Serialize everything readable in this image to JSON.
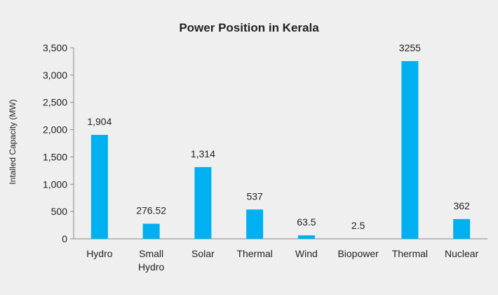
{
  "chart_data": {
    "type": "bar",
    "title": "Power Position in Kerala",
    "xlabel": "",
    "ylabel": "Intalled Capacity (MW)",
    "categories": [
      [
        "Hydro"
      ],
      [
        "Small",
        "Hydro"
      ],
      [
        "Solar"
      ],
      [
        "Thermal"
      ],
      [
        "Wind"
      ],
      [
        "Biopower"
      ],
      [
        "Thermal"
      ],
      [
        "Nuclear"
      ]
    ],
    "values": [
      1904,
      276.52,
      1314,
      537,
      63.5,
      2.5,
      3255,
      362
    ],
    "data_labels": [
      "1,904",
      "276.52",
      "1,314",
      "537",
      "63.5",
      "2.5",
      "3255",
      "362"
    ],
    "ylim": [
      0,
      3500
    ],
    "yticks": [
      0,
      500,
      1000,
      1500,
      2000,
      2500,
      3000,
      3500
    ],
    "ytick_labels": [
      "0",
      "500",
      "1,000",
      "1,500",
      "2,000",
      "2,500",
      "3,000",
      "3,500"
    ],
    "grid": false,
    "bar_color": "#00b0f0",
    "axis_color": "#888888"
  }
}
